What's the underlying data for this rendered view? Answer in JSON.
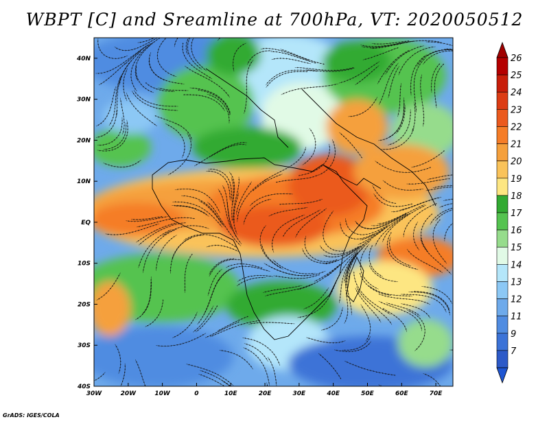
{
  "title": "WBPT [C] and Sreamline at 700hPa, VT: 2020050512",
  "credit": "GrADS: IGES/COLA",
  "map": {
    "lon_range": [
      -30,
      75
    ],
    "lat_range": [
      -40,
      45
    ],
    "lon_ticks": [
      {
        "value": -30,
        "label": "30W"
      },
      {
        "value": -20,
        "label": "20W"
      },
      {
        "value": -10,
        "label": "10W"
      },
      {
        "value": 0,
        "label": "0"
      },
      {
        "value": 10,
        "label": "10E"
      },
      {
        "value": 20,
        "label": "20E"
      },
      {
        "value": 30,
        "label": "30E"
      },
      {
        "value": 40,
        "label": "40E"
      },
      {
        "value": 50,
        "label": "50E"
      },
      {
        "value": 60,
        "label": "60E"
      },
      {
        "value": 70,
        "label": "70E"
      }
    ],
    "lat_ticks": [
      {
        "value": 40,
        "label": "40N"
      },
      {
        "value": 30,
        "label": "30N"
      },
      {
        "value": 20,
        "label": "20N"
      },
      {
        "value": 10,
        "label": "10N"
      },
      {
        "value": 0,
        "label": "EQ"
      },
      {
        "value": -10,
        "label": "10S"
      },
      {
        "value": -20,
        "label": "20S"
      },
      {
        "value": -30,
        "label": "30S"
      },
      {
        "value": -40,
        "label": "40S"
      }
    ]
  },
  "colorbar": {
    "levels": [
      {
        "label": "26",
        "color": "#b40000"
      },
      {
        "label": "25",
        "color": "#c81e0a"
      },
      {
        "label": "24",
        "color": "#dc3c14"
      },
      {
        "label": "23",
        "color": "#eb5a1e"
      },
      {
        "label": "22",
        "color": "#f57d28"
      },
      {
        "label": "21",
        "color": "#f5a03c"
      },
      {
        "label": "20",
        "color": "#fac35a"
      },
      {
        "label": "19",
        "color": "#fde682"
      },
      {
        "label": "18",
        "color": "#32aa32"
      },
      {
        "label": "17",
        "color": "#55c350"
      },
      {
        "label": "16",
        "color": "#96dc8c"
      },
      {
        "label": "15",
        "color": "#e1fae6"
      },
      {
        "label": "14",
        "color": "#b4e6fa"
      },
      {
        "label": "13",
        "color": "#8cc8f5"
      },
      {
        "label": "12",
        "color": "#6eaaeb"
      },
      {
        "label": "11",
        "color": "#508ce1"
      },
      {
        "label": "9",
        "color": "#3c73d7"
      },
      {
        "label": "7",
        "color": "#2d5ac8"
      }
    ],
    "top_color": "#a00000",
    "bottom_color": "#1e55d2"
  }
}
